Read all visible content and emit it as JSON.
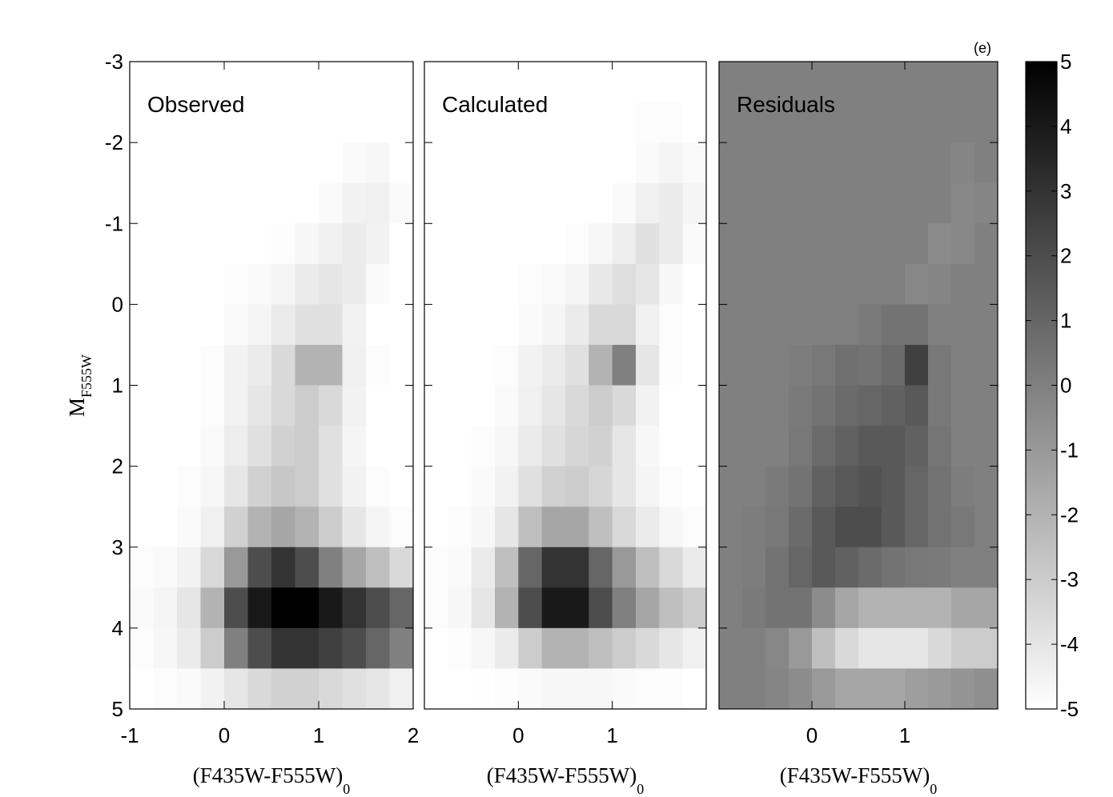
{
  "chart_data": [
    {
      "type": "density",
      "title": "Observed",
      "xlabel": "(F435W-F555W)",
      "xlabel_sub": "0",
      "ylabel": "M",
      "ylabel_sub": "F555W",
      "xlim": [
        -1,
        2
      ],
      "xticks": [
        -1,
        0,
        1,
        2
      ],
      "ylim": [
        -3,
        5
      ],
      "yticks": [
        -3,
        -2,
        -1,
        0,
        1,
        2,
        3,
        4,
        5
      ],
      "y_inverted": true,
      "show_ytick_labels": true,
      "zlim": [
        0,
        10
      ],
      "xbins": [
        -1,
        -0.75,
        -0.5,
        -0.25,
        0,
        0.25,
        0.5,
        0.75,
        1,
        1.25,
        1.5,
        1.75,
        2
      ],
      "ybins": [
        -3,
        -2.5,
        -2,
        -1.5,
        -1,
        -0.5,
        0,
        0.5,
        1,
        1.5,
        2,
        2.5,
        3,
        3.5,
        4,
        4.5,
        5
      ],
      "values": [
        [
          0,
          0,
          0,
          0,
          0,
          0,
          0,
          0,
          0,
          0,
          0,
          0
        ],
        [
          0,
          0,
          0,
          0,
          0,
          0,
          0,
          0,
          0,
          0,
          0,
          0
        ],
        [
          0,
          0,
          0,
          0,
          0,
          0,
          0,
          0,
          0,
          0.2,
          0.3,
          0
        ],
        [
          0,
          0,
          0,
          0,
          0,
          0,
          0,
          0,
          0.2,
          0.5,
          0.6,
          0.2
        ],
        [
          0,
          0,
          0,
          0,
          0,
          0,
          0.1,
          0.3,
          0.6,
          0.8,
          0.5,
          0
        ],
        [
          0,
          0,
          0,
          0,
          0.1,
          0.2,
          0.4,
          0.8,
          1,
          0.8,
          0.2,
          0
        ],
        [
          0,
          0,
          0,
          0,
          0.2,
          0.4,
          0.8,
          1.2,
          1.2,
          0.5,
          0,
          0
        ],
        [
          0,
          0,
          0,
          0.1,
          0.5,
          0.8,
          1.5,
          3,
          3,
          0.6,
          0.1,
          0
        ],
        [
          0,
          0,
          0,
          0.1,
          0.5,
          1,
          1.5,
          2,
          1.5,
          0.5,
          0,
          0
        ],
        [
          0,
          0,
          0,
          0.2,
          0.7,
          1.2,
          1.8,
          2,
          1.2,
          0.4,
          0,
          0
        ],
        [
          0,
          0,
          0.1,
          0.3,
          1,
          1.8,
          2.2,
          2,
          1.2,
          0.5,
          0.1,
          0
        ],
        [
          0,
          0,
          0.2,
          0.6,
          1.8,
          3,
          3.5,
          3,
          2,
          1,
          0.4,
          0.1
        ],
        [
          0.1,
          0.2,
          0.5,
          1.5,
          4,
          7,
          8,
          7,
          5,
          3.5,
          2.5,
          1.5
        ],
        [
          0.2,
          0.4,
          1,
          3,
          7,
          9,
          10,
          10,
          9,
          8,
          7,
          6
        ],
        [
          0.1,
          0.3,
          0.8,
          2,
          5,
          7,
          8,
          8,
          7.5,
          7,
          6,
          5
        ],
        [
          0,
          0.1,
          0.2,
          0.5,
          1,
          1.5,
          1.8,
          1.8,
          1.5,
          1.2,
          1,
          0.6
        ]
      ]
    },
    {
      "type": "density",
      "title": "Calculated",
      "xlabel": "(F435W-F555W)",
      "xlabel_sub": "0",
      "xlim": [
        -1,
        2
      ],
      "xticks": [
        0,
        1
      ],
      "ylim": [
        -3,
        5
      ],
      "yticks": [
        -3,
        -2,
        -1,
        0,
        1,
        2,
        3,
        4,
        5
      ],
      "y_inverted": true,
      "show_ytick_labels": false,
      "zlim": [
        0,
        10
      ],
      "xbins": [
        -1,
        -0.75,
        -0.5,
        -0.25,
        0,
        0.25,
        0.5,
        0.75,
        1,
        1.25,
        1.5,
        1.75,
        2
      ],
      "ybins": [
        -3,
        -2.5,
        -2,
        -1.5,
        -1,
        -0.5,
        0,
        0.5,
        1,
        1.5,
        2,
        2.5,
        3,
        3.5,
        4,
        4.5,
        5
      ],
      "values": [
        [
          0,
          0,
          0,
          0,
          0,
          0,
          0,
          0,
          0,
          0,
          0,
          0
        ],
        [
          0,
          0,
          0,
          0,
          0,
          0,
          0,
          0,
          0,
          0.1,
          0.1,
          0
        ],
        [
          0,
          0,
          0,
          0,
          0,
          0,
          0,
          0,
          0,
          0.2,
          0.4,
          0.2
        ],
        [
          0,
          0,
          0,
          0,
          0,
          0,
          0,
          0,
          0.2,
          0.6,
          0.8,
          0.4
        ],
        [
          0,
          0,
          0,
          0,
          0,
          0,
          0.1,
          0.3,
          0.7,
          1.2,
          0.8,
          0.2
        ],
        [
          0,
          0,
          0,
          0,
          0.1,
          0.2,
          0.4,
          0.9,
          1.3,
          1,
          0.3,
          0
        ],
        [
          0,
          0,
          0,
          0,
          0.2,
          0.4,
          0.8,
          1.5,
          1.5,
          0.6,
          0.1,
          0
        ],
        [
          0,
          0,
          0,
          0.1,
          0.5,
          0.8,
          1.2,
          3,
          5,
          1,
          0.1,
          0
        ],
        [
          0,
          0,
          0,
          0.2,
          0.6,
          1,
          1.5,
          2,
          1.5,
          0.5,
          0,
          0
        ],
        [
          0,
          0,
          0.1,
          0.3,
          0.8,
          1.2,
          1.6,
          1.8,
          1,
          0.3,
          0,
          0
        ],
        [
          0,
          0,
          0.2,
          0.5,
          1.2,
          1.8,
          2,
          1.6,
          1,
          0.4,
          0.1,
          0
        ],
        [
          0,
          0.1,
          0.3,
          1,
          2.5,
          3.5,
          3.5,
          2.5,
          1.5,
          0.8,
          0.3,
          0.1
        ],
        [
          0.1,
          0.2,
          0.8,
          2.5,
          6,
          8,
          8,
          6,
          4,
          2.5,
          1.5,
          0.8
        ],
        [
          0.1,
          0.3,
          1,
          3,
          7,
          9,
          9,
          7,
          5,
          3.5,
          2.5,
          2
        ],
        [
          0,
          0.1,
          0.3,
          0.8,
          2,
          3,
          3,
          2.5,
          2,
          1.5,
          1,
          0.6
        ],
        [
          0,
          0,
          0.05,
          0.1,
          0.2,
          0.3,
          0.3,
          0.3,
          0.2,
          0.1,
          0.1,
          0
        ]
      ]
    },
    {
      "type": "heatmap",
      "title": "Residuals",
      "annotation": "(e)",
      "xlabel": "(F435W-F555W)",
      "xlabel_sub": "0",
      "xlim": [
        -1,
        2
      ],
      "xticks": [
        0,
        1
      ],
      "ylim": [
        -3,
        5
      ],
      "yticks": [
        -3,
        -2,
        -1,
        0,
        1,
        2,
        3,
        4,
        5
      ],
      "y_inverted": true,
      "show_ytick_labels": false,
      "zlim": [
        -5,
        5
      ],
      "cbar_ticks": [
        -5,
        -4,
        -3,
        -2,
        -1,
        0,
        1,
        2,
        3,
        4,
        5
      ],
      "xbins": [
        -1,
        -0.75,
        -0.5,
        -0.25,
        0,
        0.25,
        0.5,
        0.75,
        1,
        1.25,
        1.5,
        1.75,
        2
      ],
      "ybins": [
        -3,
        -2.5,
        -2,
        -1.5,
        -1,
        -0.5,
        0,
        0.5,
        1,
        1.5,
        2,
        2.5,
        3,
        3.5,
        4,
        4.5,
        5
      ],
      "values": [
        [
          0,
          0,
          0,
          0,
          0,
          0,
          0,
          0,
          0,
          0,
          0,
          0
        ],
        [
          0,
          0,
          0,
          0,
          0,
          0,
          0,
          0,
          0,
          0,
          0,
          0
        ],
        [
          0,
          0,
          0,
          0,
          0,
          0,
          0,
          0,
          0,
          0,
          -0.2,
          0
        ],
        [
          0,
          0,
          0,
          0,
          0,
          0,
          0,
          0,
          0,
          0,
          -0.3,
          -0.2
        ],
        [
          0,
          0,
          0,
          0,
          0,
          0,
          0,
          0,
          0,
          -0.4,
          -0.3,
          0
        ],
        [
          0,
          0,
          0,
          0,
          0,
          0,
          0,
          0,
          -0.3,
          -0.2,
          0,
          0
        ],
        [
          0,
          0,
          0,
          0,
          0,
          0,
          0.2,
          0.5,
          0.5,
          0,
          0,
          0
        ],
        [
          0,
          0,
          0,
          0.1,
          0.3,
          0.6,
          0.5,
          0.8,
          2.5,
          0.3,
          0,
          0
        ],
        [
          0,
          0,
          0,
          0.2,
          0.5,
          0.8,
          1,
          1.2,
          1.5,
          0.3,
          0,
          0
        ],
        [
          0,
          0,
          0,
          0.3,
          0.8,
          1.2,
          1.5,
          1.5,
          1.2,
          0.4,
          0,
          0
        ],
        [
          0,
          0,
          0.2,
          0.5,
          1.2,
          1.5,
          1.8,
          1.5,
          1,
          0.5,
          0.1,
          0
        ],
        [
          0,
          0.1,
          0.3,
          0.8,
          1.5,
          2,
          2,
          1.5,
          1,
          0.5,
          0.3,
          0
        ],
        [
          0,
          0.1,
          0.5,
          1,
          1.5,
          1.2,
          0.8,
          0.5,
          0.3,
          0.2,
          0,
          0
        ],
        [
          0,
          0.2,
          0.5,
          0.5,
          -0.5,
          -1.5,
          -2,
          -2,
          -2,
          -2,
          -1.5,
          -1.5
        ],
        [
          0,
          0,
          -0.3,
          -1,
          -2.5,
          -3.5,
          -4,
          -4,
          -4,
          -3.5,
          -3,
          -3
        ],
        [
          0,
          0,
          -0.2,
          -0.5,
          -1,
          -1.5,
          -1.5,
          -1.5,
          -1.2,
          -1,
          -0.8,
          -0.6
        ]
      ]
    }
  ]
}
